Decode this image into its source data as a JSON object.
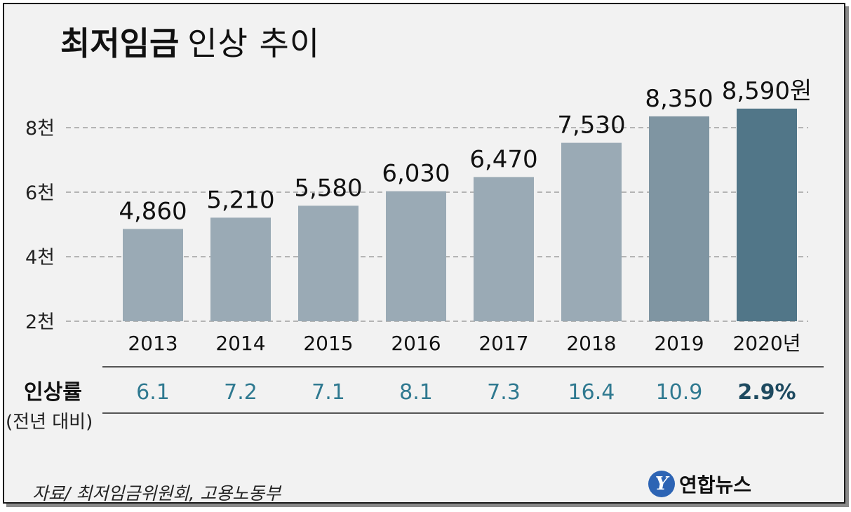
{
  "title": {
    "bold": "최저임금",
    "light": "인상 추이"
  },
  "chart_data": {
    "type": "bar",
    "title": "최저임금 인상 추이",
    "categories": [
      "2013",
      "2014",
      "2015",
      "2016",
      "2017",
      "2018",
      "2019",
      "2020년"
    ],
    "values": [
      4860,
      5210,
      5580,
      6030,
      6470,
      7530,
      8350,
      8590
    ],
    "value_labels": [
      "4,860",
      "5,210",
      "5,580",
      "6,030",
      "6,470",
      "7,530",
      "8,350",
      "8,590원"
    ],
    "ylim": [
      2000,
      9000
    ],
    "yticks": [
      2000,
      4000,
      6000,
      8000
    ],
    "ytick_labels": [
      "2천",
      "4천",
      "6천",
      "8천"
    ],
    "grid": true,
    "xlabel": "",
    "ylabel": "",
    "rate_label": "인상률",
    "rate_sublabel": "(전년 대비)",
    "rates": [
      "6.1",
      "7.2",
      "7.1",
      "8.1",
      "7.3",
      "16.4",
      "10.9",
      "2.9%"
    ],
    "bar_colors": [
      "#9aaab5",
      "#9aaab5",
      "#9aaab5",
      "#9aaab5",
      "#9aaab5",
      "#9aaab5",
      "#7f95a2",
      "#517688"
    ],
    "rate_color": "#2f7990",
    "rate_highlight_color": "#1e4a60"
  },
  "source": "자료/ 최저임금위원회, 고용노동부",
  "logo": {
    "mark": "Y",
    "text": "연합뉴스"
  }
}
